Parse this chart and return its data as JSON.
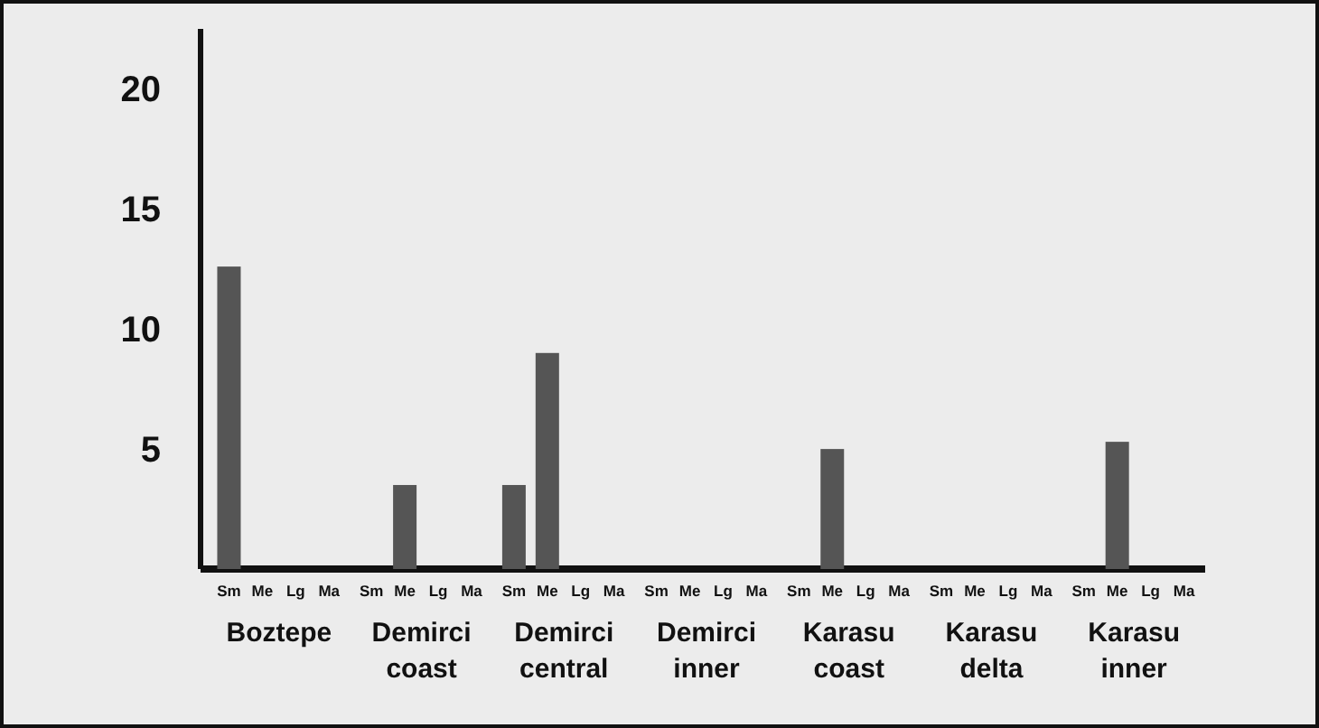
{
  "chart_data": {
    "type": "bar",
    "categories": [
      "Boztepe",
      "Demirci coast",
      "Demirci central",
      "Demirci inner",
      "Karasu coast",
      "Karasu delta",
      "Karasu inner"
    ],
    "series": [
      {
        "name": "Sm",
        "color": "#555555",
        "values": [
          12.6,
          0,
          3.5,
          0,
          0,
          0,
          0
        ]
      },
      {
        "name": "Me",
        "color": "#555555",
        "values": [
          0,
          3.5,
          9,
          0,
          5,
          0,
          5.3
        ]
      },
      {
        "name": "Lg",
        "values": [
          0,
          0,
          0,
          0,
          0,
          0,
          0
        ]
      },
      {
        "name": "Ma",
        "values": [
          0,
          0,
          0,
          0,
          0,
          0,
          0
        ]
      }
    ],
    "ylim": [
      0,
      22.5
    ],
    "yticks": [
      5,
      10,
      15,
      20
    ],
    "grid": false,
    "legend": false
  }
}
